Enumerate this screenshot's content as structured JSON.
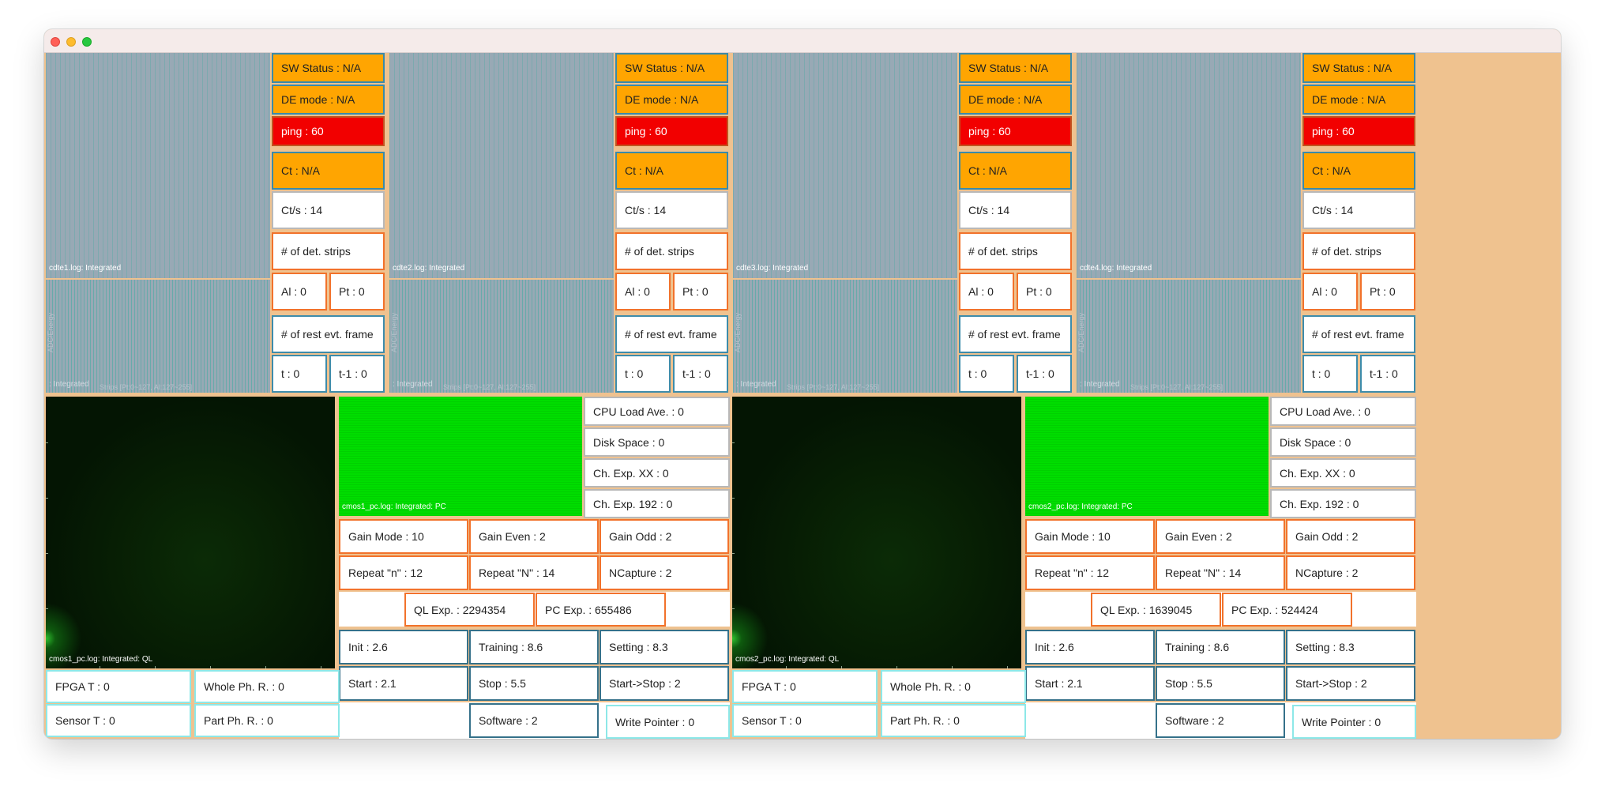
{
  "colors": {
    "window_background": "#efc28f",
    "status_orange": "#ffa501",
    "status_red": "#f20000",
    "image_green": "#00dd00"
  },
  "detectors": [
    {
      "image_label": "cdte1.log: Integrated",
      "spectrum_label": ": Integrated",
      "spectrum_xlabel": "Strips [Pt:0~127, Al:127~255]",
      "spectrum_ylabel": "ADC/Energy",
      "sw_status": "SW Status : N/A",
      "de_mode": "DE mode : N/A",
      "ping": "ping : 60",
      "ct": "Ct : N/A",
      "cts": "Ct/s : 14",
      "det_strips": "# of det. strips",
      "al": "Al : 0",
      "pt": "Pt : 0",
      "rest_evt": "# of rest evt. frame",
      "t": "t : 0",
      "t1": "t-1 : 0"
    },
    {
      "image_label": "cdte2.log: Integrated",
      "spectrum_label": ": Integrated",
      "spectrum_xlabel": "Strips [Pt:0~127, Al:127~255]",
      "spectrum_ylabel": "ADC/Energy",
      "sw_status": "SW Status : N/A",
      "de_mode": "DE mode : N/A",
      "ping": "ping : 60",
      "ct": "Ct : N/A",
      "cts": "Ct/s : 14",
      "det_strips": "# of det. strips",
      "al": "Al : 0",
      "pt": "Pt : 0",
      "rest_evt": "# of rest evt. frame",
      "t": "t : 0",
      "t1": "t-1 : 0"
    },
    {
      "image_label": "cdte3.log: Integrated",
      "spectrum_label": ": Integrated",
      "spectrum_xlabel": "Strips [Pt:0~127, Al:127~255]",
      "spectrum_ylabel": "ADC/Energy",
      "sw_status": "SW Status : N/A",
      "de_mode": "DE mode : N/A",
      "ping": "ping : 60",
      "ct": "Ct : N/A",
      "cts": "Ct/s : 14",
      "det_strips": "# of det. strips",
      "al": "Al : 0",
      "pt": "Pt : 0",
      "rest_evt": "# of rest evt. frame",
      "t": "t : 0",
      "t1": "t-1 : 0"
    },
    {
      "image_label": "cdte4.log: Integrated",
      "spectrum_label": ": Integrated",
      "spectrum_xlabel": "Strips [Pt:0~127, Al:127~255]",
      "spectrum_ylabel": "ADC/Energy",
      "sw_status": "SW Status : N/A",
      "de_mode": "DE mode : N/A",
      "ping": "ping : 60",
      "ct": "Ct : N/A",
      "cts": "Ct/s : 14",
      "det_strips": "# of det. strips",
      "al": "Al : 0",
      "pt": "Pt : 0",
      "rest_evt": "# of rest evt. frame",
      "t": "t : 0",
      "t1": "t-1 : 0"
    }
  ],
  "cmos": [
    {
      "ql_label": "cmos1_pc.log: Integrated: QL",
      "pc_label": "cmos1_pc.log: Integrated: PC",
      "cpu_load": "CPU Load Ave. : 0",
      "disk_space": "Disk Space : 0",
      "ch_exp_xx": "Ch. Exp. XX : 0",
      "ch_exp_192": "Ch. Exp. 192 : 0",
      "gain_mode": "Gain Mode : 10",
      "gain_even": "Gain Even : 2",
      "gain_odd": "Gain Odd : 2",
      "repeat_n_lower": "Repeat \"n\" : 12",
      "repeat_n_upper": "Repeat \"N\" : 14",
      "ncapture": "NCapture : 2",
      "ql_exp": "QL Exp. : 2294354",
      "pc_exp": "PC Exp. : 655486",
      "init": "Init : 2.6",
      "training": "Training : 8.6",
      "setting": "Setting : 8.3",
      "start": "Start : 2.1",
      "stop": "Stop : 5.5",
      "start_stop": "Start->Stop : 2",
      "software": "Software : 2",
      "write_pointer": "Write Pointer : 0",
      "fpga_t": "FPGA T : 0",
      "whole_ph_r": "Whole Ph. R. : 0",
      "sensor_t": "Sensor T : 0",
      "part_ph_r": "Part Ph. R. : 0"
    },
    {
      "ql_label": "cmos2_pc.log: Integrated: QL",
      "pc_label": "cmos2_pc.log: Integrated: PC",
      "cpu_load": "CPU Load Ave. : 0",
      "disk_space": "Disk Space : 0",
      "ch_exp_xx": "Ch. Exp. XX : 0",
      "ch_exp_192": "Ch. Exp. 192 : 0",
      "gain_mode": "Gain Mode : 10",
      "gain_even": "Gain Even : 2",
      "gain_odd": "Gain Odd : 2",
      "repeat_n_lower": "Repeat \"n\" : 12",
      "repeat_n_upper": "Repeat \"N\" : 14",
      "ncapture": "NCapture : 2",
      "ql_exp": "QL Exp. : 1639045",
      "pc_exp": "PC Exp. : 524424",
      "init": "Init : 2.6",
      "training": "Training : 8.6",
      "setting": "Setting : 8.3",
      "start": "Start : 2.1",
      "stop": "Stop : 5.5",
      "start_stop": "Start->Stop : 2",
      "software": "Software : 2",
      "write_pointer": "Write Pointer : 0",
      "fpga_t": "FPGA T : 0",
      "whole_ph_r": "Whole Ph. R. : 0",
      "sensor_t": "Sensor T : 0",
      "part_ph_r": "Part Ph. R. : 0"
    }
  ]
}
